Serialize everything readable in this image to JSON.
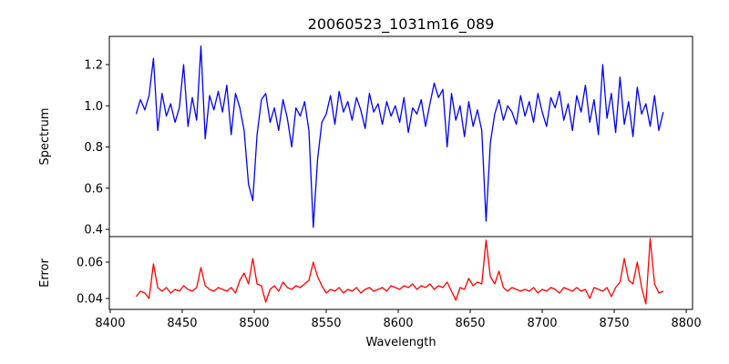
{
  "chart_data": [
    {
      "type": "line",
      "title": "20060523_1031m16_089",
      "ylabel": "Spectrum",
      "xlabel": "",
      "xlim": [
        8399.4,
        8804.4
      ],
      "ylim": [
        0.365,
        1.337
      ],
      "yticks": [
        0.4,
        0.6,
        0.8,
        1.0,
        1.2
      ],
      "ytick_labels": [
        "0.4",
        "0.6",
        "0.8",
        "1.0",
        "1.2"
      ],
      "grid": false,
      "color": "#0000ff",
      "series": [
        {
          "name": "Spectrum",
          "x_start": 8418,
          "x_step": 3,
          "values": [
            0.96,
            1.03,
            0.98,
            1.05,
            1.23,
            0.88,
            1.06,
            0.95,
            1.01,
            0.92,
            0.99,
            1.2,
            0.9,
            1.04,
            0.93,
            1.29,
            0.84,
            1.05,
            0.98,
            1.07,
            0.97,
            1.1,
            0.86,
            1.06,
            0.99,
            0.88,
            0.62,
            0.54,
            0.86,
            1.03,
            1.06,
            0.92,
            0.99,
            0.88,
            1.03,
            0.94,
            0.8,
            0.99,
            0.95,
            1.02,
            0.88,
            0.41,
            0.74,
            0.92,
            0.96,
            1.05,
            0.91,
            1.07,
            0.97,
            1.02,
            0.93,
            1.04,
            0.98,
            0.89,
            1.06,
            0.97,
            1.01,
            0.91,
            1.02,
            0.95,
            1.0,
            0.92,
            1.04,
            0.87,
            0.99,
            0.96,
            1.03,
            0.9,
            1.01,
            1.11,
            1.04,
            1.08,
            0.8,
            1.06,
            0.93,
            1.0,
            0.85,
            1.02,
            0.9,
            0.98,
            0.88,
            0.44,
            0.82,
            0.96,
            1.03,
            0.93,
            1.0,
            0.97,
            0.91,
            1.05,
            0.95,
            1.02,
            0.92,
            1.06,
            0.97,
            0.9,
            1.04,
            0.99,
            1.07,
            0.93,
            1.01,
            0.88,
            1.05,
            0.97,
            1.1,
            0.92,
            1.03,
            0.86,
            1.2,
            0.94,
            1.06,
            0.87,
            1.14,
            0.91,
            1.02,
            0.85,
            1.09,
            0.96,
            1.01,
            0.9,
            1.05,
            0.88,
            0.97
          ]
        }
      ]
    },
    {
      "type": "line",
      "title": "",
      "ylabel": "Error",
      "xlabel": "Wavelength",
      "xlim": [
        8399.4,
        8804.4
      ],
      "ylim": [
        0.034,
        0.074
      ],
      "yticks": [
        0.04,
        0.06
      ],
      "ytick_labels": [
        "0.04",
        "0.06"
      ],
      "xticks": [
        8400,
        8450,
        8500,
        8550,
        8600,
        8650,
        8700,
        8750,
        8800
      ],
      "xtick_labels": [
        "8400",
        "8450",
        "8500",
        "8550",
        "8600",
        "8650",
        "8700",
        "8750",
        "8800"
      ],
      "grid": false,
      "color": "#ff0000",
      "series": [
        {
          "name": "Error",
          "x_start": 8418,
          "x_step": 3,
          "values": [
            0.041,
            0.044,
            0.043,
            0.04,
            0.059,
            0.046,
            0.044,
            0.046,
            0.043,
            0.045,
            0.044,
            0.047,
            0.045,
            0.044,
            0.046,
            0.057,
            0.047,
            0.045,
            0.044,
            0.046,
            0.045,
            0.044,
            0.046,
            0.043,
            0.05,
            0.054,
            0.048,
            0.062,
            0.048,
            0.047,
            0.038,
            0.045,
            0.047,
            0.044,
            0.049,
            0.046,
            0.045,
            0.047,
            0.046,
            0.048,
            0.05,
            0.06,
            0.052,
            0.047,
            0.043,
            0.045,
            0.044,
            0.046,
            0.043,
            0.045,
            0.044,
            0.046,
            0.043,
            0.045,
            0.046,
            0.044,
            0.045,
            0.046,
            0.044,
            0.047,
            0.046,
            0.045,
            0.047,
            0.046,
            0.048,
            0.045,
            0.047,
            0.046,
            0.048,
            0.045,
            0.047,
            0.046,
            0.049,
            0.044,
            0.039,
            0.046,
            0.045,
            0.051,
            0.047,
            0.049,
            0.048,
            0.072,
            0.052,
            0.048,
            0.055,
            0.046,
            0.044,
            0.046,
            0.045,
            0.044,
            0.045,
            0.044,
            0.046,
            0.043,
            0.045,
            0.044,
            0.046,
            0.045,
            0.043,
            0.046,
            0.045,
            0.044,
            0.046,
            0.044,
            0.045,
            0.04,
            0.046,
            0.045,
            0.044,
            0.046,
            0.041,
            0.046,
            0.049,
            0.062,
            0.05,
            0.048,
            0.06,
            0.046,
            0.037,
            0.073,
            0.048,
            0.043,
            0.044
          ]
        }
      ]
    }
  ]
}
